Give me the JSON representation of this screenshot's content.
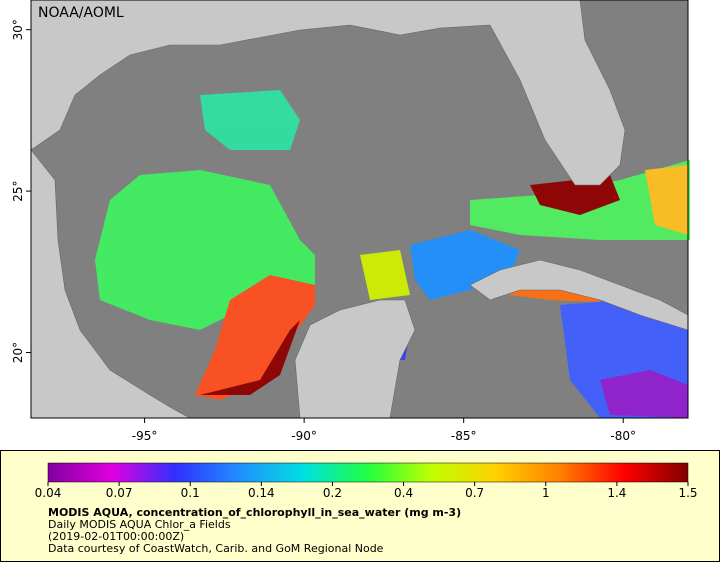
{
  "map": {
    "title": "NOAA/AOML",
    "xlim": [
      -98.56,
      -77.97
    ],
    "ylim": [
      17.97,
      30.92
    ],
    "xticks": [
      {
        "value": -95,
        "label": "-95°"
      },
      {
        "value": -90,
        "label": "-90°"
      },
      {
        "value": -85,
        "label": "-85°"
      },
      {
        "value": -80,
        "label": "-80°"
      }
    ],
    "yticks": [
      {
        "value": 30,
        "label": "30°"
      },
      {
        "value": 25,
        "label": "25°"
      },
      {
        "value": 20,
        "label": "20°"
      }
    ]
  },
  "colorbar": {
    "ticks": [
      0.04,
      0.07,
      0.1,
      0.14,
      0.2,
      0.4,
      0.7,
      1,
      1.4,
      1.5
    ],
    "colors": [
      "#8000a0",
      "#e000e0",
      "#3030ff",
      "#2090ff",
      "#00e0e0",
      "#20ff40",
      "#c0ff00",
      "#ffd000",
      "#ff8000",
      "#ff0000",
      "#800000"
    ]
  },
  "caption": {
    "lines": [
      "MODIS AQUA, concentration_of_chlorophyll_in_sea_water (mg m-3)",
      "Daily MODIS AQUA Chlor_a Fields",
      "(2019-02-01T00:00:00Z)",
      "Data courtesy of CoastWatch, Carib. and GoM Regional Node"
    ]
  }
}
